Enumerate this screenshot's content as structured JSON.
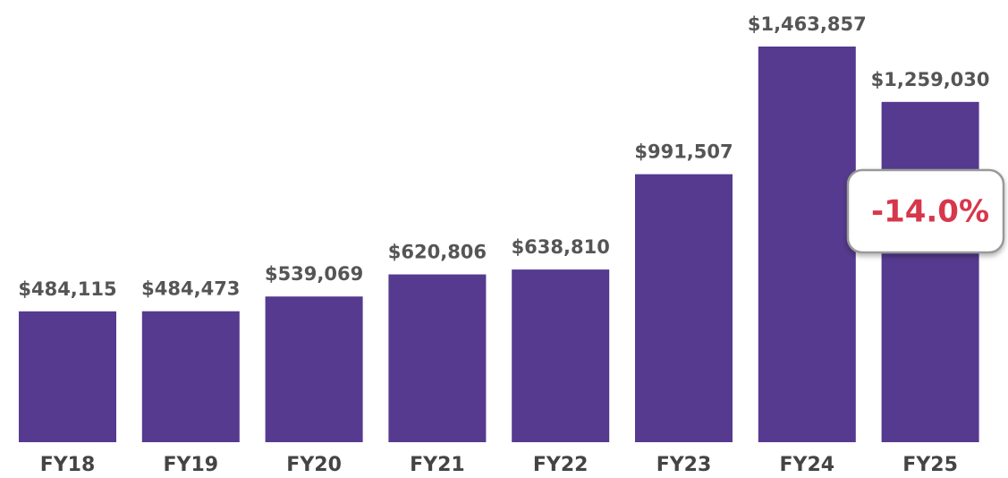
{
  "chart_data": {
    "type": "bar",
    "categories": [
      "FY18",
      "FY19",
      "FY20",
      "FY21",
      "FY22",
      "FY23",
      "FY24",
      "FY25"
    ],
    "values": [
      484115,
      484473,
      539069,
      620806,
      638810,
      991507,
      1463857,
      1259030
    ],
    "value_labels": [
      "$484,115",
      "$484,473",
      "$539,069",
      "$620,806",
      "$638,810",
      "$991,507",
      "$1,463,857",
      "$1,259,030"
    ],
    "color": "#553a8f",
    "annotation": "-14.0%"
  }
}
